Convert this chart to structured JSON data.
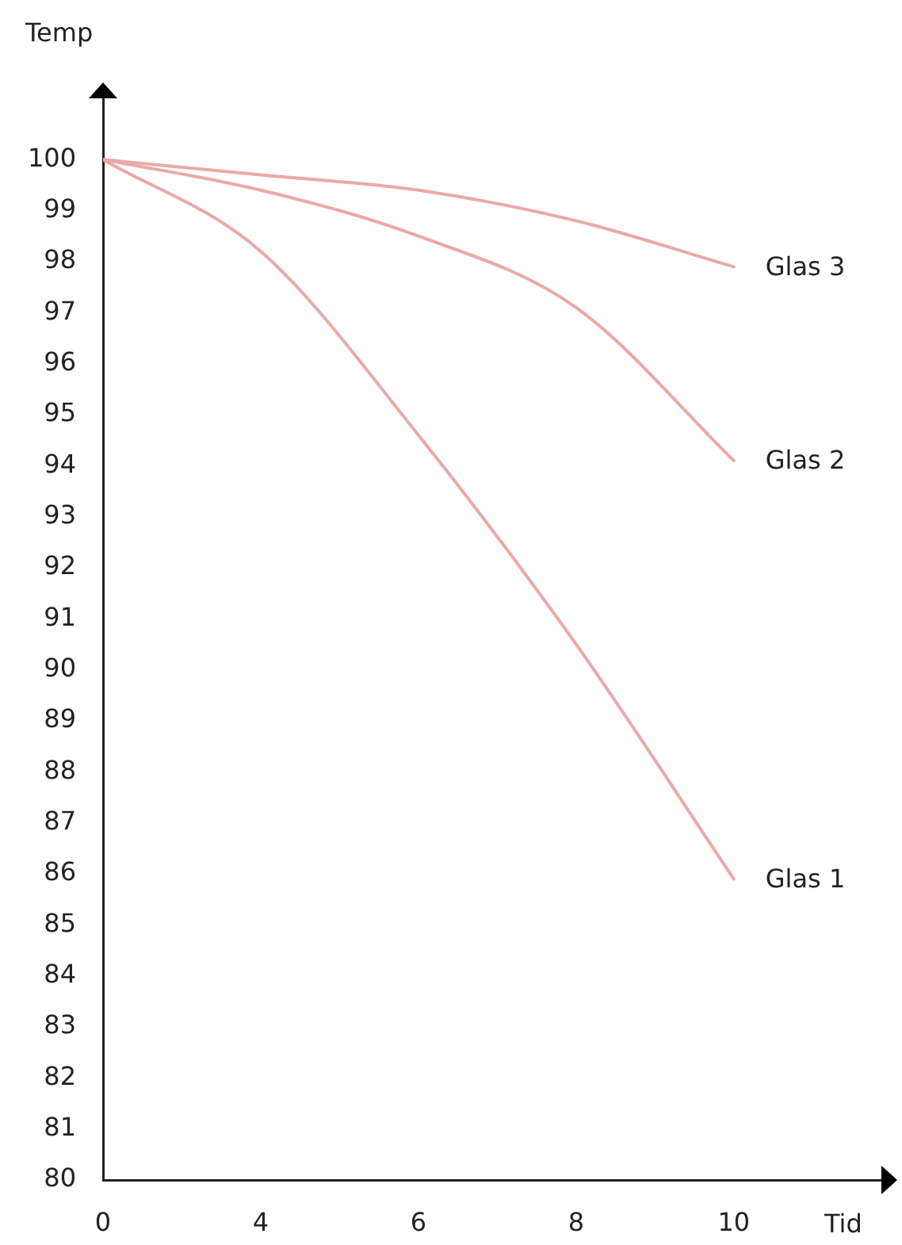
{
  "chart_data": {
    "type": "line",
    "xlabel": "Tid",
    "ylabel": "Temp",
    "categories": [
      "0",
      "4",
      "6",
      "8",
      "10"
    ],
    "series": [
      {
        "name": "Glas 1",
        "color": "#e9a9a9",
        "values": [
          100,
          98.2,
          94.6,
          90.5,
          85.9
        ]
      },
      {
        "name": "Glas 2",
        "color": "#e9a9a9",
        "values": [
          100,
          99.4,
          98.5,
          97.1,
          94.1
        ]
      },
      {
        "name": "Glas 3",
        "color": "#e9a9a9",
        "values": [
          100,
          99.7,
          99.4,
          98.8,
          97.9
        ]
      }
    ],
    "ylim": [
      80,
      101.2
    ],
    "yticks": [
      80,
      81,
      82,
      83,
      84,
      85,
      86,
      87,
      88,
      89,
      90,
      91,
      92,
      93,
      94,
      95,
      96,
      97,
      98,
      99,
      100
    ],
    "grid": false,
    "legend": false,
    "marker": "none",
    "line_style": "solid"
  }
}
